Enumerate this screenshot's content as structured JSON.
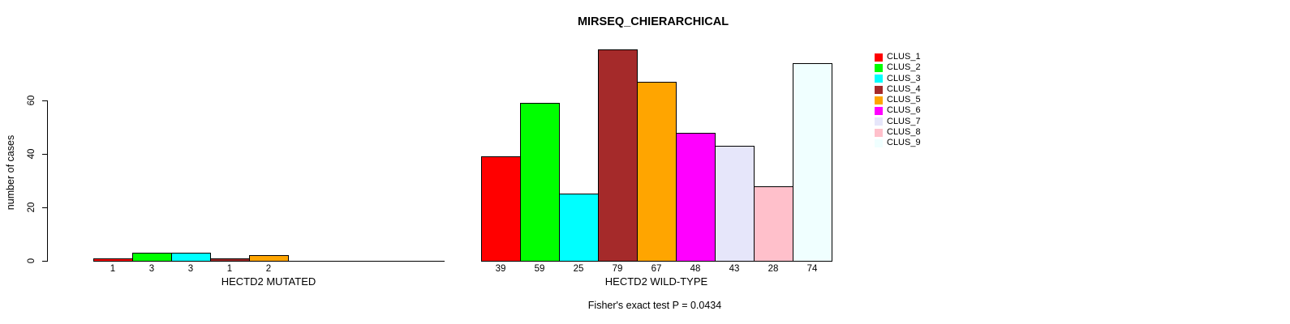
{
  "chart_data": {
    "type": "bar",
    "title": "MIRSEQ_CHIERARCHICAL",
    "ylabel": "number of cases",
    "annotation": "Fisher's exact test P = 0.0434",
    "ylim": [
      0,
      60
    ],
    "yticks": [
      0,
      20,
      40,
      60
    ],
    "grid": false,
    "legend_position": "right",
    "legend": [
      {
        "label": "CLUS_1",
        "color": "#FF0000"
      },
      {
        "label": "CLUS_2",
        "color": "#00FF00"
      },
      {
        "label": "CLUS_3",
        "color": "#00FFFF"
      },
      {
        "label": "CLUS_4",
        "color": "#A52A2A"
      },
      {
        "label": "CLUS_5",
        "color": "#FFA500"
      },
      {
        "label": "CLUS_6",
        "color": "#FF00FF"
      },
      {
        "label": "CLUS_7",
        "color": "#E6E6FA"
      },
      {
        "label": "CLUS_8",
        "color": "#FFC0CB"
      },
      {
        "label": "CLUS_9",
        "color": "#F0FFFF"
      }
    ],
    "groups": [
      {
        "xlabel": "HECTD2 MUTATED",
        "categories": [
          "CLUS_1",
          "CLUS_2",
          "CLUS_3",
          "CLUS_4",
          "CLUS_5",
          "CLUS_6",
          "CLUS_7",
          "CLUS_8",
          "CLUS_9"
        ],
        "values": [
          1,
          3,
          3,
          1,
          2,
          0,
          0,
          0,
          0
        ]
      },
      {
        "xlabel": "HECTD2 WILD-TYPE",
        "categories": [
          "CLUS_1",
          "CLUS_2",
          "CLUS_3",
          "CLUS_4",
          "CLUS_5",
          "CLUS_6",
          "CLUS_7",
          "CLUS_8",
          "CLUS_9"
        ],
        "values": [
          39,
          59,
          25,
          79,
          67,
          48,
          43,
          28,
          74
        ]
      }
    ]
  }
}
